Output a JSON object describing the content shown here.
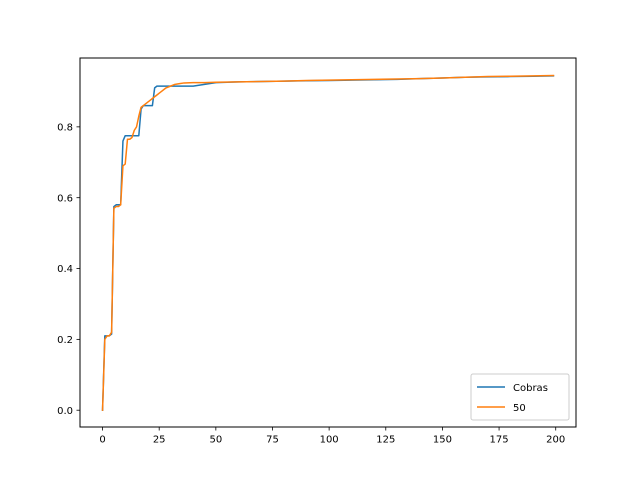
{
  "chart_data": {
    "type": "line",
    "title": "",
    "xlabel": "",
    "ylabel": "",
    "xlim": [
      -9.95,
      208.95
    ],
    "ylim": [
      -0.0474,
      0.9944
    ],
    "x_ticks": [
      0,
      25,
      50,
      75,
      100,
      125,
      150,
      175,
      200
    ],
    "y_ticks": [
      0.0,
      0.2,
      0.4,
      0.6,
      0.8
    ],
    "x_tick_labels": [
      "0",
      "25",
      "50",
      "75",
      "100",
      "125",
      "150",
      "175",
      "200"
    ],
    "y_tick_labels": [
      "0.0",
      "0.2",
      "0.4",
      "0.6",
      "0.8"
    ],
    "grid": false,
    "legend_position": "lower right",
    "series": [
      {
        "name": "Cobras",
        "color": "#1f77b4",
        "x": [
          0,
          1,
          2,
          3,
          4,
          5,
          6,
          7,
          8,
          9,
          10,
          11,
          12,
          13,
          14,
          15,
          16,
          17,
          18,
          19,
          20,
          21,
          22,
          23,
          24,
          25,
          30,
          35,
          40,
          45,
          50,
          60,
          70,
          80,
          90,
          100,
          110,
          120,
          130,
          140,
          150,
          160,
          170,
          180,
          190,
          199
        ],
        "y": [
          0.0,
          0.21,
          0.21,
          0.21,
          0.215,
          0.575,
          0.58,
          0.58,
          0.58,
          0.76,
          0.775,
          0.775,
          0.775,
          0.775,
          0.775,
          0.775,
          0.775,
          0.85,
          0.86,
          0.86,
          0.86,
          0.86,
          0.86,
          0.91,
          0.915,
          0.915,
          0.915,
          0.915,
          0.915,
          0.92,
          0.925,
          0.927,
          0.928,
          0.929,
          0.93,
          0.931,
          0.932,
          0.933,
          0.934,
          0.936,
          0.938,
          0.94,
          0.941,
          0.942,
          0.943,
          0.944
        ]
      },
      {
        "name": "50",
        "color": "#ff7f0e",
        "x": [
          0,
          1,
          2,
          3,
          4,
          5,
          6,
          7,
          8,
          9,
          10,
          11,
          12,
          13,
          14,
          15,
          16,
          17,
          18,
          19,
          20,
          21,
          22,
          23,
          24,
          25,
          26,
          28,
          30,
          32,
          34,
          36,
          40,
          45,
          50,
          60,
          70,
          80,
          90,
          100,
          110,
          120,
          130,
          140,
          150,
          160,
          170,
          180,
          190,
          199
        ],
        "y": [
          0.0,
          0.2,
          0.21,
          0.21,
          0.22,
          0.57,
          0.575,
          0.575,
          0.58,
          0.69,
          0.695,
          0.765,
          0.765,
          0.77,
          0.79,
          0.8,
          0.83,
          0.855,
          0.86,
          0.865,
          0.87,
          0.875,
          0.88,
          0.885,
          0.89,
          0.895,
          0.9,
          0.91,
          0.915,
          0.92,
          0.922,
          0.924,
          0.925,
          0.925,
          0.926,
          0.927,
          0.928,
          0.929,
          0.931,
          0.932,
          0.933,
          0.934,
          0.935,
          0.936,
          0.938,
          0.94,
          0.942,
          0.943,
          0.944,
          0.945
        ]
      }
    ]
  }
}
